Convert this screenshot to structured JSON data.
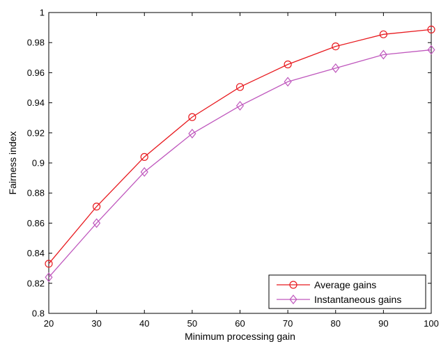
{
  "chart_data": {
    "type": "line",
    "title": "",
    "xlabel": "Minimum processing gain",
    "ylabel": "Fairness index",
    "xlim": [
      20,
      100
    ],
    "ylim": [
      0.8,
      1.0
    ],
    "xticks": [
      20,
      30,
      40,
      50,
      60,
      70,
      80,
      90,
      100
    ],
    "yticks": [
      0.8,
      0.82,
      0.84,
      0.86,
      0.88,
      0.9,
      0.92,
      0.94,
      0.96,
      0.98,
      1
    ],
    "ytick_labels": [
      "0.8",
      "0.82",
      "0.84",
      "0.86",
      "0.88",
      "0.9",
      "0.92",
      "0.94",
      "0.96",
      "0.98",
      "1"
    ],
    "grid": false,
    "legend_position": "bottom-right",
    "x": [
      20,
      30,
      40,
      50,
      60,
      70,
      80,
      90,
      100
    ],
    "series": [
      {
        "name": "Average gains",
        "color": "#e8191e",
        "marker": "circle",
        "values": [
          0.833,
          0.871,
          0.904,
          0.9305,
          0.9505,
          0.9655,
          0.9775,
          0.9855,
          0.9887
        ]
      },
      {
        "name": "Instantaneous gains",
        "color": "#bf57bd",
        "marker": "diamond",
        "values": [
          0.824,
          0.86,
          0.894,
          0.9195,
          0.938,
          0.954,
          0.963,
          0.972,
          0.9752
        ]
      }
    ]
  }
}
